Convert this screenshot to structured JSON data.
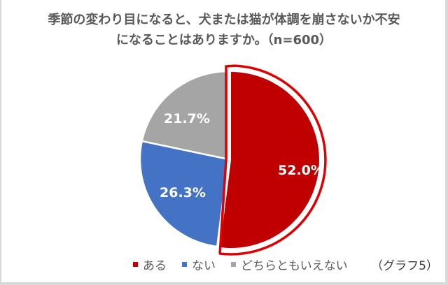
{
  "title": {
    "line1": "季節の変わり目になると、犬または猫が体調を崩さないか不安",
    "line2": "になることはありますか。（n=600）"
  },
  "note": "（グラフ5）",
  "legend": [
    {
      "label": "ある",
      "color": "#c00000"
    },
    {
      "label": "ない",
      "color": "#4472c4"
    },
    {
      "label": "どちらともいえない",
      "color": "#a5a5a5"
    }
  ],
  "labels": {
    "aru": "52.0%",
    "nai": "26.3%",
    "dochira": "21.7%"
  },
  "chart_data": {
    "type": "pie",
    "title": "季節の変わり目になると、犬または猫が体調を崩さないか不安になることはありますか。（n=600）",
    "categories": [
      "ある",
      "ない",
      "どちらともいえない"
    ],
    "values": [
      52.0,
      26.3,
      21.7
    ],
    "unit": "%",
    "n": 600,
    "colors": [
      "#c00000",
      "#4472c4",
      "#a5a5a5"
    ],
    "highlighted": "ある",
    "legend_position": "bottom",
    "start_angle": "12 o'clock, clockwise"
  }
}
